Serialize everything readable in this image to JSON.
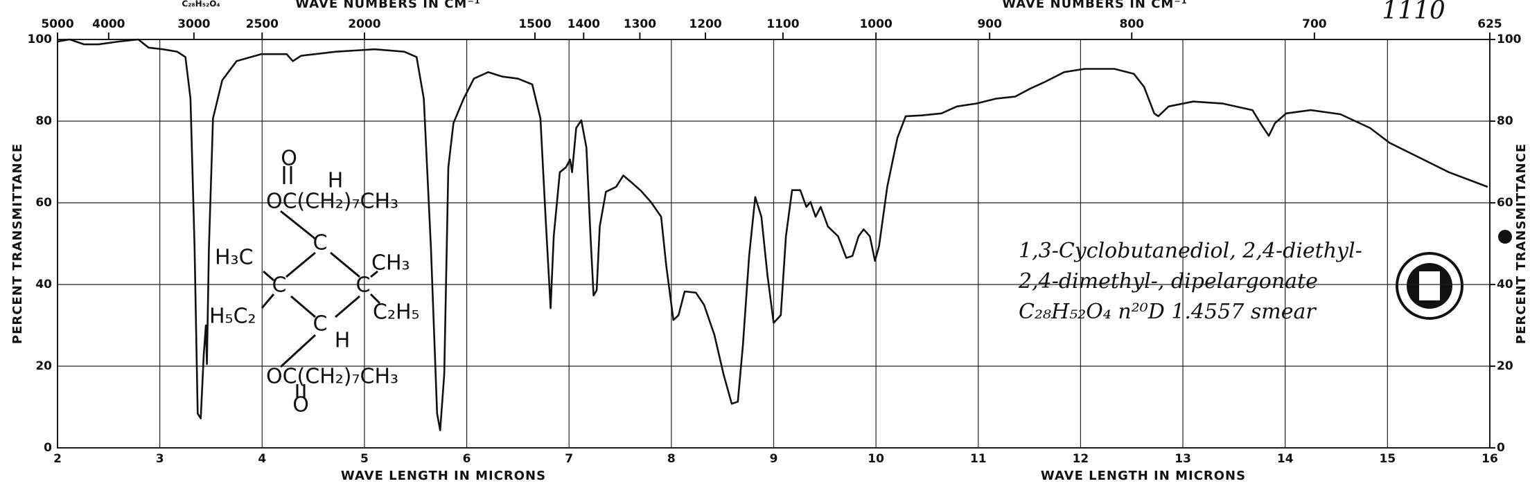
{
  "chart_data": {
    "type": "line",
    "formula_header": "C₂₈H₅₂O₄",
    "code": "1110",
    "x_titles": [
      "WAVE LENGTH IN MICRONS",
      "WAVE LENGTH IN MICRONS"
    ],
    "x2_titles": [
      "WAVE NUMBERS IN CM⁻¹",
      "WAVE NUMBERS IN CM⁻¹"
    ],
    "y_titles": [
      "PERCENT TRANSMITTANCE",
      "PERCENT TRANSMITTANCE"
    ],
    "xlim": [
      2,
      16
    ],
    "xticks": [
      2,
      3,
      4,
      5,
      6,
      7,
      8,
      9,
      10,
      11,
      12,
      13,
      14,
      15,
      16
    ],
    "x2lim": [
      5000,
      625
    ],
    "x2ticks": [
      5000,
      4000,
      3000,
      2500,
      2000,
      1500,
      1400,
      1300,
      1200,
      1100,
      1000,
      900,
      800,
      700,
      625
    ],
    "ylim": [
      0,
      100
    ],
    "yticks": [
      0,
      20,
      40,
      60,
      80,
      100
    ],
    "y2lim": [
      0,
      100
    ],
    "y2ticks": [
      0,
      20,
      40,
      60,
      80,
      100
    ],
    "grid": true,
    "color": "#111111",
    "x": [
      2.0,
      2.12,
      2.26,
      2.4,
      2.6,
      2.79,
      2.89,
      3.03,
      3.17,
      3.25,
      3.3,
      3.34,
      3.37,
      3.4,
      3.43,
      3.45,
      3.46,
      3.48,
      3.52,
      3.61,
      3.75,
      3.99,
      4.24,
      4.3,
      4.38,
      4.72,
      5.1,
      5.39,
      5.51,
      5.58,
      5.65,
      5.71,
      5.74,
      5.78,
      5.82,
      5.87,
      5.97,
      6.07,
      6.21,
      6.35,
      6.5,
      6.64,
      6.72,
      6.77,
      6.82,
      6.85,
      6.91,
      6.97,
      7.01,
      7.03,
      7.07,
      7.12,
      7.17,
      7.21,
      7.24,
      7.27,
      7.3,
      7.36,
      7.46,
      7.53,
      7.61,
      7.7,
      7.8,
      7.9,
      7.95,
      8.02,
      8.07,
      8.13,
      8.24,
      8.32,
      8.42,
      8.51,
      8.59,
      8.65,
      8.7,
      8.76,
      8.82,
      8.88,
      8.94,
      9.0,
      9.07,
      9.12,
      9.18,
      9.26,
      9.32,
      9.36,
      9.41,
      9.46,
      9.53,
      9.63,
      9.71,
      9.77,
      9.83,
      9.88,
      9.94,
      9.99,
      10.03,
      10.11,
      10.21,
      10.29,
      10.45,
      10.64,
      10.79,
      10.98,
      11.17,
      11.36,
      11.51,
      11.65,
      11.84,
      12.04,
      12.33,
      12.52,
      12.62,
      12.72,
      12.76,
      12.86,
      13.1,
      13.39,
      13.68,
      13.77,
      13.84,
      13.9,
      14.01,
      14.25,
      14.54,
      14.83,
      15.02,
      15.31,
      15.6,
      15.98
    ],
    "values": [
      99.5,
      100,
      98.8,
      98.8,
      99.5,
      100,
      98,
      97.6,
      97,
      95.7,
      85.5,
      49,
      8.4,
      7.2,
      23,
      30,
      20.5,
      49,
      80.7,
      90,
      94.7,
      96.4,
      96.4,
      94.7,
      96,
      97,
      97.6,
      97,
      95.7,
      85.5,
      49,
      8.4,
      4.3,
      18,
      68.7,
      79.5,
      85.5,
      90.4,
      92,
      90.9,
      90.4,
      89,
      80.7,
      56.6,
      34.2,
      51.8,
      67.5,
      68.7,
      70.6,
      67.5,
      78.3,
      80.2,
      73.5,
      51.8,
      37.3,
      38.6,
      54.2,
      62.7,
      63.9,
      66.7,
      65,
      63,
      60.2,
      56.6,
      44.6,
      31.3,
      32.5,
      38.3,
      38,
      35,
      27.7,
      18,
      10.8,
      11.3,
      25.3,
      47,
      61.4,
      56.6,
      42.2,
      30.6,
      32.5,
      51.8,
      63.1,
      63.1,
      59,
      60.2,
      56.6,
      59,
      54.2,
      51.8,
      46.5,
      47,
      51.8,
      53.5,
      51.8,
      45.8,
      49.4,
      63.9,
      75.9,
      81.2,
      81.4,
      81.9,
      83.6,
      84.3,
      85.5,
      86,
      88,
      89.6,
      92,
      92.8,
      92.8,
      91.6,
      88.4,
      81.9,
      81.2,
      83.6,
      84.8,
      84.3,
      82.7,
      79,
      76.4,
      79.5,
      81.9,
      82.7,
      81.7,
      78.3,
      74.7,
      71.1,
      67.5,
      63.9
    ],
    "structure": [
      "O",
      "OC(CH₂)₇CH₃",
      "C",
      "H",
      "H₃C",
      "C",
      "C",
      "CH₃",
      "H₅C₂",
      "C₂H₅",
      "C",
      "H",
      "OC(CH₂)₇CH₃",
      "O"
    ],
    "sample_label": [
      "1,3-Cyclobutanediol, 2,4-diethyl-",
      "2,4-dimethyl-, dipelargonate",
      "C₂₈H₅₂O₄   n²⁰D 1.4557   smear"
    ]
  }
}
